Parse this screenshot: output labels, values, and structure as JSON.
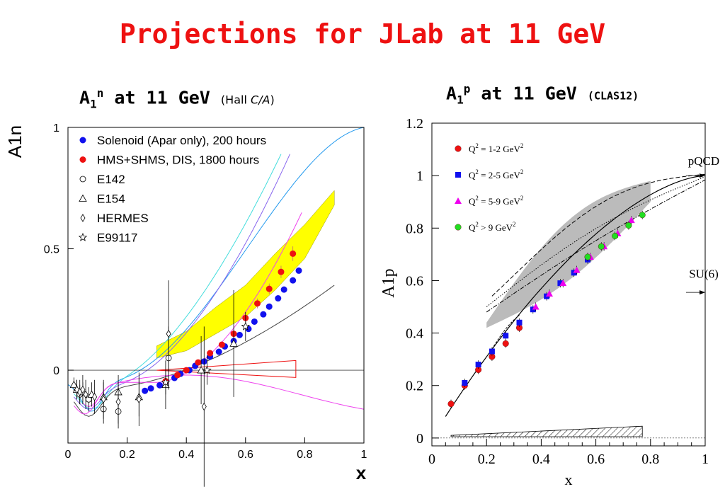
{
  "title": "Projections for JLab at 11 GeV",
  "left_panel": {
    "title_main": "A",
    "title_sub": "1",
    "title_sup": "n",
    "title_rest": " at 11 GeV ",
    "title_note_a": "(Hall ",
    "title_note_b": "C/A",
    "title_note_c": ")"
  },
  "right_panel": {
    "title_main": "A",
    "title_sub": "1",
    "title_sup": "p",
    "title_rest": " at 11 GeV ",
    "title_note": "(CLAS12)"
  },
  "colors": {
    "red": "#ee1111",
    "blue": "#1111ee",
    "magenta": "#ee00ee",
    "green": "#22dd22",
    "yellow": "#ffff00",
    "gray_band": "#bbbbbb"
  },
  "chart_data": [
    {
      "type": "scatter",
      "xlabel": "x",
      "ylabel": "A1n",
      "xlim": [
        0,
        1
      ],
      "ylim": [
        -0.3,
        1.0
      ],
      "x_ticks": [
        "0",
        "0.2",
        "0.4",
        "0.6",
        "0.8",
        "1"
      ],
      "y_ticks": [
        "0",
        "0.5",
        "1"
      ],
      "y_tick_values": [
        0,
        0.5,
        1
      ],
      "legend_position": "top-left",
      "legend": [
        {
          "label": "Solenoid (Apar only), 200 hours",
          "marker": "filled-circle",
          "color": "#1111ee"
        },
        {
          "label": "HMS+SHMS, DIS, 1800 hours",
          "marker": "filled-circle",
          "color": "#ee1111"
        },
        {
          "label": "E142",
          "marker": "open-circle",
          "color": "#000000"
        },
        {
          "label": "E154",
          "marker": "open-triangle",
          "color": "#000000"
        },
        {
          "label": "HERMES",
          "marker": "open-diamond",
          "color": "#000000"
        },
        {
          "label": "E99117",
          "marker": "open-star",
          "color": "#000000"
        }
      ],
      "series": [
        {
          "name": "Solenoid (Apar only), 200 hours",
          "x": [
            0.26,
            0.28,
            0.31,
            0.33,
            0.36,
            0.38,
            0.41,
            0.43,
            0.46,
            0.48,
            0.51,
            0.53,
            0.56,
            0.58,
            0.61,
            0.63,
            0.66,
            0.68,
            0.71,
            0.73,
            0.76,
            0.78
          ],
          "y": [
            -0.085,
            -0.075,
            -0.062,
            -0.048,
            -0.032,
            -0.015,
            0.0,
            0.018,
            0.036,
            0.056,
            0.076,
            0.098,
            0.12,
            0.145,
            0.17,
            0.2,
            0.23,
            0.262,
            0.296,
            0.332,
            0.37,
            0.41
          ]
        },
        {
          "name": "HMS+SHMS, DIS, 1800 hours",
          "x": [
            0.33,
            0.37,
            0.4,
            0.44,
            0.48,
            0.52,
            0.56,
            0.6,
            0.64,
            0.68,
            0.72,
            0.76
          ],
          "y": [
            -0.045,
            -0.02,
            0.0,
            0.032,
            0.07,
            0.105,
            0.15,
            0.215,
            0.275,
            0.335,
            0.405,
            0.48
          ],
          "err": [
            0.008,
            0.008,
            0.009,
            0.01,
            0.012,
            0.013,
            0.015,
            0.018,
            0.02,
            0.022,
            0.025,
            0.03
          ]
        },
        {
          "name": "E142",
          "x": [
            0.04,
            0.07,
            0.12,
            0.17,
            0.34
          ],
          "y": [
            -0.1,
            -0.12,
            -0.16,
            -0.17,
            0.05
          ],
          "err": [
            0.04,
            0.05,
            0.06,
            0.07,
            0.13
          ]
        },
        {
          "name": "E154",
          "x": [
            0.02,
            0.03,
            0.05,
            0.08,
            0.12,
            0.17,
            0.24,
            0.33,
            0.45,
            0.56
          ],
          "y": [
            -0.06,
            -0.08,
            -0.09,
            -0.1,
            -0.11,
            -0.09,
            -0.11,
            -0.06,
            0.0,
            0.11
          ],
          "err": [
            0.03,
            0.04,
            0.04,
            0.05,
            0.06,
            0.07,
            0.08,
            0.1,
            0.14,
            0.22
          ]
        },
        {
          "name": "HERMES",
          "x": [
            0.03,
            0.04,
            0.05,
            0.06,
            0.09,
            0.12,
            0.17,
            0.24,
            0.34,
            0.46
          ],
          "y": [
            -0.08,
            -0.09,
            -0.08,
            -0.1,
            -0.11,
            -0.12,
            -0.13,
            -0.12,
            0.15,
            -0.15
          ],
          "err": [
            0.04,
            0.05,
            0.06,
            0.06,
            0.07,
            0.08,
            0.09,
            0.11,
            0.22,
            0.33
          ]
        },
        {
          "name": "E99117",
          "x": [
            0.33,
            0.47,
            0.6
          ],
          "y": [
            -0.05,
            0.0,
            0.18
          ],
          "err": [
            0.05,
            0.06,
            0.06
          ]
        }
      ]
    },
    {
      "type": "scatter",
      "xlabel": "x",
      "ylabel": "A1p",
      "xlim": [
        0,
        1
      ],
      "ylim": [
        -0.03,
        1.2
      ],
      "x_ticks": [
        "0",
        "0.2",
        "0.4",
        "0.6",
        "0.8",
        "1"
      ],
      "y_ticks": [
        "0",
        "0.2",
        "0.4",
        "0.6",
        "0.8",
        "1",
        "1.2"
      ],
      "y_tick_values": [
        0,
        0.2,
        0.4,
        0.6,
        0.8,
        1.0,
        1.2
      ],
      "legend_position": "top-left",
      "legend": [
        {
          "label_a": "Q",
          "label_sup": "2",
          "label_b": " = 1-2 GeV",
          "label_sup2": "2",
          "marker": "filled-circle",
          "color": "#ee1111"
        },
        {
          "label_a": "Q",
          "label_sup": "2",
          "label_b": " = 2-5 GeV",
          "label_sup2": "2",
          "marker": "filled-square",
          "color": "#1111ee"
        },
        {
          "label_a": "Q",
          "label_sup": "2",
          "label_b": " = 5-9 GeV",
          "label_sup2": "2",
          "marker": "filled-triangle",
          "color": "#ee00ee"
        },
        {
          "label_a": "Q",
          "label_sup": "2",
          "label_b": " > 9 GeV",
          "label_sup2": "2",
          "marker": "filled-circle",
          "color": "#22dd22"
        }
      ],
      "annotations": [
        {
          "text": "pQCD",
          "x": 0.93,
          "y": 1.03
        },
        {
          "text": "SU(6)",
          "x": 0.93,
          "y": 0.6
        }
      ],
      "series": [
        {
          "name": "Q2 = 1-2 GeV2",
          "x": [
            0.07,
            0.12,
            0.17,
            0.22,
            0.27,
            0.32
          ],
          "y": [
            0.13,
            0.2,
            0.26,
            0.31,
            0.36,
            0.42
          ]
        },
        {
          "name": "Q2 = 2-5 GeV2",
          "x": [
            0.12,
            0.17,
            0.22,
            0.27,
            0.32,
            0.37,
            0.42,
            0.47,
            0.52,
            0.57
          ],
          "y": [
            0.21,
            0.28,
            0.33,
            0.39,
            0.44,
            0.49,
            0.54,
            0.59,
            0.63,
            0.68
          ]
        },
        {
          "name": "Q2 = 5-9 GeV2",
          "x": [
            0.38,
            0.43,
            0.48,
            0.53,
            0.58,
            0.63,
            0.68,
            0.73
          ],
          "y": [
            0.5,
            0.55,
            0.59,
            0.64,
            0.69,
            0.73,
            0.78,
            0.83
          ]
        },
        {
          "name": "Q2 > 9 GeV2",
          "x": [
            0.57,
            0.62,
            0.67,
            0.72,
            0.77
          ],
          "y": [
            0.69,
            0.73,
            0.77,
            0.81,
            0.85
          ]
        }
      ]
    }
  ]
}
